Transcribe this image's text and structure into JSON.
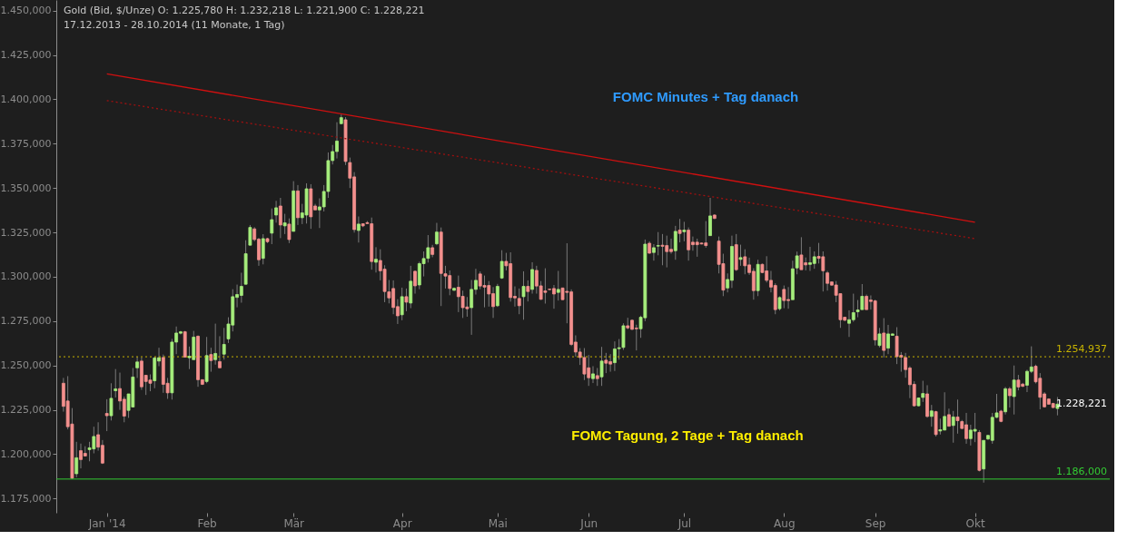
{
  "chart_data": {
    "type": "candlestick",
    "title": "Gold (Bid, $/Unze)  O: 1.225,780  H: 1.232,218  L: 1.221,900  C: 1.228,221",
    "subtitle": "17.12.2013 - 28.10.2014 (11 Monate, 1 Tag)",
    "categories": [
      null,
      null,
      null,
      null,
      null,
      null,
      null,
      null,
      null,
      null,
      "Jan '14",
      null,
      null,
      null,
      null,
      null,
      null,
      null,
      null,
      null,
      null,
      null,
      null,
      null,
      null,
      null,
      null,
      null,
      null,
      null,
      null,
      null,
      null,
      "Feb",
      null,
      null,
      null,
      null,
      null,
      null,
      null,
      null,
      null,
      null,
      null,
      null,
      null,
      null,
      null,
      null,
      null,
      null,
      null,
      "Mär",
      null,
      null,
      null,
      null,
      null,
      null,
      null,
      null,
      null,
      null,
      null,
      null,
      null,
      null,
      null,
      null,
      null,
      null,
      null,
      null,
      null,
      null,
      null,
      null,
      "Apr",
      null,
      null,
      null,
      null,
      null,
      null,
      null,
      null,
      null,
      null,
      null,
      null,
      null,
      null,
      null,
      null,
      null,
      null,
      null,
      null,
      null,
      "Mai",
      null,
      null,
      null,
      null,
      null,
      null,
      null,
      null,
      null,
      null,
      null,
      null,
      null,
      null,
      null,
      null,
      null,
      null,
      null,
      null,
      "Jun",
      null,
      null,
      null,
      null,
      null,
      null,
      null,
      null,
      null,
      null,
      null,
      null,
      null,
      null,
      null,
      null,
      null,
      null,
      null,
      null,
      null,
      "Jul",
      null,
      null,
      null,
      null,
      null,
      null,
      null,
      null,
      null,
      null,
      null,
      null,
      null,
      null,
      null,
      null,
      null,
      null,
      null,
      null,
      null,
      null,
      "Aug",
      null,
      null,
      null,
      null,
      null,
      null,
      null,
      null,
      null,
      null,
      null,
      null,
      null,
      null,
      null,
      null,
      null,
      null,
      null,
      null,
      "Sep",
      null,
      null,
      null,
      null,
      null,
      null,
      null,
      null,
      null,
      null,
      null,
      null,
      null,
      null,
      null,
      null,
      null,
      null,
      null,
      null,
      null,
      null,
      "Okt",
      null,
      null,
      null,
      null,
      null,
      null,
      null,
      null,
      null,
      null,
      null,
      null,
      null,
      null,
      null,
      null,
      null,
      null,
      null
    ],
    "ohlc": [
      [
        1240,
        1243,
        1224,
        1227
      ],
      [
        1230,
        1244,
        1214,
        1215.5
      ],
      [
        1217,
        1226,
        1186,
        1186.5
      ],
      [
        1189,
        1207,
        1187,
        1198
      ],
      [
        1202,
        1206,
        1192,
        1197
      ],
      [
        1200.5,
        1204.5,
        1199,
        1199
      ],
      [
        1202.6,
        1207,
        1196,
        1203.6
      ],
      [
        1203,
        1215.5,
        1200.5,
        1210
      ],
      [
        1211,
        1218,
        1202,
        1204
      ],
      [
        1205,
        1208,
        1194.5,
        1195
      ],
      [
        1223,
        1231,
        1213,
        1221.7
      ],
      [
        1221.7,
        1240,
        1219,
        1231.5
      ],
      [
        1235.8,
        1248,
        1232,
        1236.8
      ],
      [
        1237,
        1246,
        1225,
        1230
      ],
      [
        1231,
        1232.5,
        1218,
        1221.5
      ],
      [
        1224.7,
        1234,
        1220.5,
        1234
      ],
      [
        1226.6,
        1248.6,
        1226.6,
        1243.5
      ],
      [
        1248.7,
        1255,
        1243,
        1252
      ],
      [
        1252.5,
        1254.5,
        1236.3,
        1238
      ],
      [
        1244.5,
        1244.5,
        1233.4,
        1241
      ],
      [
        1241.8,
        1245,
        1235.5,
        1240
      ],
      [
        1241.4,
        1255,
        1237.2,
        1254.2
      ],
      [
        1252.5,
        1260,
        1249.6,
        1254.4
      ],
      [
        1254.5,
        1256.2,
        1234.6,
        1239.4
      ],
      [
        1240,
        1243,
        1231.2,
        1234.6
      ],
      [
        1234.6,
        1265,
        1230.8,
        1263.2
      ],
      [
        1263.2,
        1272,
        1256.4,
        1268.3
      ],
      [
        1268.2,
        1269.5,
        1267.5,
        1269
      ],
      [
        1269,
        1269.5,
        1254.5,
        1254.7
      ],
      [
        1254.4,
        1260.7,
        1248,
        1255.2
      ],
      [
        1253.3,
        1269.5,
        1253.3,
        1266
      ],
      [
        1266.5,
        1267,
        1238,
        1242
      ],
      [
        1242,
        1242,
        1239,
        1239.4
      ],
      [
        1241,
        1266.1,
        1240,
        1255.6
      ],
      [
        1256.2,
        1260,
        1246.5,
        1252.8
      ],
      [
        1253.3,
        1273.6,
        1250.5,
        1256.8
      ],
      [
        1252.2,
        1266.5,
        1248.7,
        1248.7
      ],
      [
        1256.4,
        1271.2,
        1253.3,
        1261.9
      ],
      [
        1265,
        1277.2,
        1262.7,
        1273.4
      ],
      [
        1272.8,
        1293,
        1269.2,
        1288.8
      ],
      [
        1288.4,
        1295.6,
        1282.8,
        1290
      ],
      [
        1289.5,
        1302.3,
        1285.4,
        1294.6
      ],
      [
        1295.8,
        1320.6,
        1295.8,
        1313
      ],
      [
        1317.8,
        1329.2,
        1317.8,
        1327.8
      ],
      [
        1327,
        1328,
        1320,
        1321
      ],
      [
        1321.2,
        1322,
        1306.2,
        1309.6
      ],
      [
        1310.4,
        1324,
        1307,
        1321.5
      ],
      [
        1321.5,
        1322,
        1319,
        1319.8
      ],
      [
        1324.6,
        1338.5,
        1318.4,
        1332.2
      ],
      [
        1334.8,
        1342.8,
        1330.5,
        1338.9
      ],
      [
        1339.9,
        1344.5,
        1321.8,
        1329.2
      ],
      [
        1328.7,
        1335.5,
        1324.1,
        1330.4
      ],
      [
        1329.7,
        1332.9,
        1319,
        1321
      ],
      [
        1325.6,
        1353.9,
        1325.6,
        1348.4
      ],
      [
        1348.4,
        1351.7,
        1329.2,
        1333.3
      ],
      [
        1333.3,
        1341.1,
        1329.7,
        1336
      ],
      [
        1334.8,
        1352.7,
        1330,
        1349.6
      ],
      [
        1349.6,
        1352.2,
        1327,
        1333.8
      ],
      [
        1339.9,
        1341.1,
        1337.7,
        1337.7
      ],
      [
        1337.7,
        1344.2,
        1327.5,
        1339.4
      ],
      [
        1339.4,
        1351.7,
        1336.8,
        1348.1
      ],
      [
        1348.1,
        1370.1,
        1344.5,
        1365.5
      ],
      [
        1365.5,
        1374.3,
        1363.3,
        1370.6
      ],
      [
        1370.6,
        1387.1,
        1366.7,
        1376.5
      ],
      [
        1386.3,
        1391.4,
        1385.9,
        1389.7
      ],
      [
        1388.5,
        1390,
        1363,
        1365
      ],
      [
        1364.4,
        1367.2,
        1350,
        1355.6
      ],
      [
        1356.3,
        1359,
        1324.9,
        1326.6
      ],
      [
        1326.1,
        1334,
        1319.3,
        1329.7
      ],
      [
        1329.9,
        1330,
        1328,
        1328.7
      ],
      [
        1330.5,
        1331.4,
        1329.9,
        1330
      ],
      [
        1329.9,
        1333.4,
        1304,
        1308.6
      ],
      [
        1308.2,
        1316.7,
        1302.4,
        1309.9
      ],
      [
        1309.2,
        1315.5,
        1298,
        1303.4
      ],
      [
        1304.3,
        1306.5,
        1285.7,
        1291.7
      ],
      [
        1291.5,
        1298.2,
        1285,
        1288.1
      ],
      [
        1293.4,
        1298,
        1278.9,
        1282.7
      ],
      [
        1283.2,
        1287.4,
        1273.4,
        1278
      ],
      [
        1278.6,
        1293.9,
        1275.5,
        1288.8
      ],
      [
        1288.8,
        1293.4,
        1280.6,
        1285.7
      ],
      [
        1285.2,
        1306.2,
        1282.3,
        1297.5
      ],
      [
        1303.1,
        1303.6,
        1290.5,
        1294.9
      ],
      [
        1295.4,
        1308.5,
        1293,
        1307.4
      ],
      [
        1307.4,
        1314.3,
        1300.2,
        1310.3
      ],
      [
        1310.4,
        1323.5,
        1308,
        1316.4
      ],
      [
        1316.4,
        1318,
        1311,
        1312.6
      ],
      [
        1318.6,
        1330.4,
        1317.8,
        1325.2
      ],
      [
        1325.2,
        1327.8,
        1283.5,
        1301.9
      ],
      [
        1301.7,
        1306.2,
        1293.4,
        1300.4
      ],
      [
        1300.7,
        1303.6,
        1289.6,
        1293.4
      ],
      [
        1292.4,
        1294,
        1292,
        1293.5
      ],
      [
        1294.1,
        1300.7,
        1280.1,
        1288.8
      ],
      [
        1289,
        1292.2,
        1276.8,
        1282.6
      ],
      [
        1283,
        1288.6,
        1277.5,
        1282
      ],
      [
        1282.6,
        1298.2,
        1267.3,
        1292.9
      ],
      [
        1292.9,
        1304.5,
        1290,
        1298
      ],
      [
        1301.6,
        1303,
        1293,
        1294.8
      ],
      [
        1295.1,
        1300.7,
        1282.8,
        1294.2
      ],
      [
        1295.1,
        1297.6,
        1283.2,
        1290.3
      ],
      [
        1290.5,
        1294.2,
        1276.8,
        1283.2
      ],
      [
        1283.7,
        1296,
        1283,
        1294.6
      ],
      [
        1299.3,
        1315,
        1298.8,
        1308.7
      ],
      [
        1308.7,
        1313.5,
        1303.6,
        1306.2
      ],
      [
        1307.4,
        1313.8,
        1286,
        1288.3
      ],
      [
        1289,
        1294.6,
        1283.2,
        1288.1
      ],
      [
        1287.8,
        1293.4,
        1278.9,
        1283.7
      ],
      [
        1288.8,
        1303.1,
        1275.8,
        1294.6
      ],
      [
        1294.6,
        1298,
        1286.1,
        1291.7
      ],
      [
        1292.9,
        1308.2,
        1290.5,
        1304.1
      ],
      [
        1303.6,
        1306.2,
        1290.5,
        1294.8
      ],
      [
        1294.9,
        1297.6,
        1287,
        1287.3
      ],
      [
        1292,
        1304.8,
        1284.9,
        1291.2
      ],
      [
        1293,
        1293.3,
        1292.5,
        1292.8
      ],
      [
        1293.4,
        1295.4,
        1282,
        1290.3
      ],
      [
        1291.2,
        1303.3,
        1286.6,
        1292.9
      ],
      [
        1293.7,
        1293.7,
        1287,
        1287.1
      ],
      [
        1291.8,
        1318.9,
        1273.8,
        1291.2
      ],
      [
        1291.5,
        1292.9,
        1261,
        1261.9
      ],
      [
        1263.2,
        1267,
        1255,
        1257.6
      ],
      [
        1257.6,
        1259.8,
        1250.3,
        1254.5
      ],
      [
        1254.5,
        1259.8,
        1241.8,
        1245.2
      ],
      [
        1248.7,
        1255.9,
        1238.5,
        1243.1
      ],
      [
        1242.6,
        1249.6,
        1240.1,
        1245.3
      ],
      [
        1244.3,
        1248.6,
        1238.5,
        1242.6
      ],
      [
        1243.6,
        1260.5,
        1238.5,
        1252.5
      ],
      [
        1253,
        1257.1,
        1245.7,
        1251.3
      ],
      [
        1252.2,
        1256.4,
        1246.5,
        1250.8
      ],
      [
        1251.6,
        1263.6,
        1246.9,
        1259.3
      ],
      [
        1259.5,
        1264.9,
        1253.3,
        1260
      ],
      [
        1260.2,
        1273.8,
        1258.8,
        1272.4
      ],
      [
        1272.4,
        1276.9,
        1270.4,
        1271.2
      ],
      [
        1275.5,
        1276,
        1270,
        1270.4
      ],
      [
        1271.1,
        1273,
        1258.5,
        1270.7
      ],
      [
        1270.7,
        1278.1,
        1265.6,
        1277.2
      ],
      [
        1276.9,
        1321,
        1275,
        1318.4
      ],
      [
        1318.9,
        1320,
        1313,
        1313.3
      ],
      [
        1313.7,
        1318.4,
        1309.1,
        1316.4
      ],
      [
        1317.3,
        1325.2,
        1312.1,
        1317.6
      ],
      [
        1317.8,
        1324.1,
        1306.5,
        1317.2
      ],
      [
        1317.6,
        1323.2,
        1305.3,
        1314.2
      ],
      [
        1315.5,
        1321.5,
        1313,
        1314.2
      ],
      [
        1314.7,
        1328.7,
        1309.6,
        1325.6
      ],
      [
        1326.3,
        1332.6,
        1319.4,
        1324.4
      ],
      [
        1325.4,
        1331,
        1320,
        1326.3
      ],
      [
        1326.3,
        1327.8,
        1309.1,
        1315.2
      ],
      [
        1319.5,
        1322.7,
        1314.7,
        1318.1
      ],
      [
        1319.5,
        1321.5,
        1311.3,
        1318.1
      ],
      [
        1319,
        1319.2,
        1318.3,
        1318.5
      ],
      [
        1319.1,
        1331.4,
        1316.4,
        1317.6
      ],
      [
        1323.2,
        1344.5,
        1323.2,
        1334.3
      ],
      [
        1334.8,
        1335.2,
        1332.5,
        1332.9
      ],
      [
        1320.1,
        1322.7,
        1301.9,
        1307
      ],
      [
        1307.4,
        1313,
        1289.1,
        1292.5
      ],
      [
        1293.7,
        1301.9,
        1291.2,
        1298.5
      ],
      [
        1298,
        1323.2,
        1293.7,
        1317.1
      ],
      [
        1318.1,
        1324.1,
        1303.3,
        1304
      ],
      [
        1309.8,
        1318.1,
        1306.2,
        1310.8
      ],
      [
        1311.3,
        1315.5,
        1301.4,
        1306.2
      ],
      [
        1306.7,
        1310.8,
        1301.1,
        1302.4
      ],
      [
        1303.1,
        1304.8,
        1287.1,
        1292.2
      ],
      [
        1292.2,
        1309.6,
        1289.1,
        1307
      ],
      [
        1307,
        1307.5,
        1302,
        1302.4
      ],
      [
        1303.3,
        1311.6,
        1296.8,
        1298
      ],
      [
        1298,
        1303.3,
        1291.2,
        1294.2
      ],
      [
        1295.1,
        1296.3,
        1278.9,
        1281.5
      ],
      [
        1282,
        1289,
        1281,
        1288.3
      ],
      [
        1292.9,
        1295.1,
        1282.3,
        1286.6
      ],
      [
        1287.2,
        1294.2,
        1282,
        1286.6
      ],
      [
        1287.1,
        1309.1,
        1287.1,
        1304.5
      ],
      [
        1305,
        1314.2,
        1301.4,
        1311.8
      ],
      [
        1312.3,
        1322.3,
        1304,
        1304
      ],
      [
        1307.9,
        1310.9,
        1303.6,
        1306.7
      ],
      [
        1307,
        1316.9,
        1303.3,
        1307.9
      ],
      [
        1307.5,
        1314.3,
        1304.5,
        1311.3
      ],
      [
        1311.5,
        1319.1,
        1307.5,
        1310.4
      ],
      [
        1311.3,
        1314.3,
        1291.7,
        1303.4
      ],
      [
        1302.2,
        1303.3,
        1292.2,
        1296.3
      ],
      [
        1297.1,
        1297.3,
        1295,
        1295.3
      ],
      [
        1295.4,
        1297.6,
        1285.7,
        1289.6
      ],
      [
        1290.5,
        1290.5,
        1271.2,
        1275.8
      ],
      [
        1277.2,
        1277.5,
        1275,
        1275.5
      ],
      [
        1273.8,
        1281.1,
        1266.1,
        1275.8
      ],
      [
        1275.8,
        1290.5,
        1274.6,
        1279.8
      ],
      [
        1280.3,
        1286.9,
        1277.2,
        1281.3
      ],
      [
        1281.5,
        1295.9,
        1281.5,
        1289
      ],
      [
        1289,
        1290,
        1281.5,
        1281.5
      ],
      [
        1286.9,
        1289.5,
        1281.5,
        1286.1
      ],
      [
        1286.4,
        1287.1,
        1261.3,
        1264.4
      ],
      [
        1261.3,
        1271.2,
        1260.2,
        1267.8
      ],
      [
        1268.3,
        1276.7,
        1254.5,
        1258.5
      ],
      [
        1259.8,
        1272.9,
        1256.4,
        1267.8
      ],
      [
        1267,
        1268,
        1266.8,
        1267.8
      ],
      [
        1266.5,
        1271.6,
        1250.8,
        1255
      ],
      [
        1255.7,
        1257.6,
        1246.5,
        1254.7
      ],
      [
        1254.5,
        1257.1,
        1243.1,
        1247.7
      ],
      [
        1248.6,
        1249.6,
        1231.6,
        1239.2
      ],
      [
        1239.4,
        1241.1,
        1226.9,
        1227.3
      ],
      [
        1227.3,
        1232,
        1227,
        1231.7
      ],
      [
        1232,
        1241.4,
        1229.5,
        1234.2
      ],
      [
        1234,
        1238.9,
        1220.6,
        1221.3
      ],
      [
        1221.3,
        1227.8,
        1215.5,
        1224.4
      ],
      [
        1224,
        1224.5,
        1210,
        1211.1
      ],
      [
        1213.1,
        1220.1,
        1211.1,
        1213.8
      ],
      [
        1213.6,
        1234.9,
        1213.6,
        1221.3
      ],
      [
        1222.3,
        1225.7,
        1215.5,
        1215.8
      ],
      [
        1216.2,
        1224.4,
        1206.5,
        1221
      ],
      [
        1221,
        1230.8,
        1211.6,
        1218.9
      ],
      [
        1218.4,
        1219.3,
        1214.2,
        1214.5
      ],
      [
        1216.6,
        1223.3,
        1205.9,
        1208.8
      ],
      [
        1208.8,
        1216.6,
        1204.9,
        1213.6
      ],
      [
        1213,
        1223.3,
        1206.8,
        1214
      ],
      [
        1212.3,
        1213.6,
        1190.3,
        1190.9
      ],
      [
        1191.7,
        1207.8,
        1184,
        1207.8
      ],
      [
        1208.6,
        1211,
        1208,
        1210.6
      ],
      [
        1207.8,
        1223.3,
        1205.9,
        1220.8
      ],
      [
        1220.8,
        1234,
        1220.4,
        1223.3
      ],
      [
        1224.3,
        1225,
        1218,
        1218.5
      ],
      [
        1223.9,
        1237.9,
        1222.4,
        1236.9
      ],
      [
        1236.9,
        1237.9,
        1226.3,
        1233
      ],
      [
        1232.5,
        1250,
        1222.4,
        1241.8
      ],
      [
        1241.8,
        1244.7,
        1236,
        1237.9
      ],
      [
        1239.5,
        1240.2,
        1237.8,
        1238.3
      ],
      [
        1238.9,
        1247.6,
        1235,
        1246.7
      ],
      [
        1246.7,
        1260.8,
        1245.7,
        1249.2
      ],
      [
        1249.6,
        1250.5,
        1239.9,
        1240.8
      ],
      [
        1242.8,
        1245.7,
        1225.3,
        1232.1
      ],
      [
        1234,
        1235,
        1226.3,
        1226.7
      ],
      [
        1231.1,
        1231.5,
        1228,
        1228.2
      ],
      [
        1228.6,
        1229,
        1226,
        1226.3
      ],
      [
        1225.78,
        1232.218,
        1221.9,
        1228.221
      ]
    ],
    "series": [
      {
        "type": "line",
        "x": [
          "Jan '14",
          "Okt"
        ],
        "values": [
          1414.4,
          1330.8
        ],
        "color": "#d01010",
        "line_style": "solid"
      },
      {
        "type": "line",
        "x": [
          "Jan '14",
          "Okt"
        ],
        "values": [
          1399.3,
          1321.5
        ],
        "color": "#a01010",
        "line_style": "dotted"
      }
    ],
    "ref_lines": [
      {
        "axis": "y",
        "value": 1254.937,
        "label": "1.254,937",
        "color": "#c8b400",
        "line_style": "dotted"
      },
      {
        "axis": "y",
        "value": 1186,
        "label": "1.186,000",
        "color": "#33cc33",
        "line_style": "solid"
      }
    ],
    "annotations": [
      "FOMC Minutes + Tag danach",
      "FOMC Tagung, 2 Tage + Tag danach",
      "1.228,221"
    ],
    "ylim": [
      1167,
      1456
    ],
    "yticks": [
      {
        "value": 1175,
        "label": "1.175,000"
      },
      {
        "value": 1200,
        "label": "1.200,000"
      },
      {
        "value": 1225,
        "label": "1.225,000"
      },
      {
        "value": 1250,
        "label": "1.250,000"
      },
      {
        "value": 1275,
        "label": "1.275,000"
      },
      {
        "value": 1300,
        "label": "1.300,000"
      },
      {
        "value": 1325,
        "label": "1.325,000"
      },
      {
        "value": 1350,
        "label": "1.350,000"
      },
      {
        "value": 1375,
        "label": "1.375,000"
      },
      {
        "value": 1400,
        "label": "1.400,000"
      },
      {
        "value": 1425,
        "label": "1.425,000"
      },
      {
        "value": 1450,
        "label": "1.450,000"
      }
    ]
  }
}
